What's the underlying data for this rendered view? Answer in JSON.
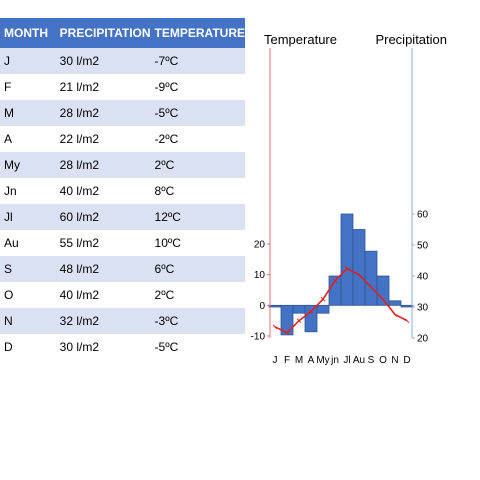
{
  "table": {
    "headers": [
      "MONTH",
      "PRECIPITATION",
      "TEMPERATURE"
    ],
    "rows": [
      {
        "month": "J",
        "precipitation": "30 l/m2",
        "temperature": "-7ºC"
      },
      {
        "month": "F",
        "precipitation": "21 l/m2",
        "temperature": "-9ºC"
      },
      {
        "month": "M",
        "precipitation": "28 l/m2",
        "temperature": "-5ºC"
      },
      {
        "month": "A",
        "precipitation": "22 l/m2",
        "temperature": "-2ºC"
      },
      {
        "month": "My",
        "precipitation": "28 l/m2",
        "temperature": "2ºC"
      },
      {
        "month": "Jn",
        "precipitation": "40 l/m2",
        "temperature": "8ºC"
      },
      {
        "month": "Jl",
        "precipitation": "60 l/m2",
        "temperature": "12ºC"
      },
      {
        "month": "Au",
        "precipitation": "55 l/m2",
        "temperature": "10ºC"
      },
      {
        "month": "S",
        "precipitation": "48 l/m2",
        "temperature": "6ºC"
      },
      {
        "month": "O",
        "precipitation": "40 l/m2",
        "temperature": "2ºC"
      },
      {
        "month": "N",
        "precipitation": "32 l/m2",
        "temperature": "-3ºC"
      },
      {
        "month": "D",
        "precipitation": "30 l/m2",
        "temperature": "-5ºC"
      }
    ]
  },
  "chart_data": {
    "type": "bar",
    "title": "",
    "left_axis_label": "Temperature",
    "right_axis_label": "Precipitation",
    "categories": [
      "J",
      "F",
      "M",
      "A",
      "My",
      "jn",
      "Jl",
      "Au",
      "S",
      "O",
      "N",
      "D"
    ],
    "category_label_sizes": [
      "large",
      "large",
      "large",
      "large",
      "small",
      "small",
      "small",
      "small",
      "small",
      "small",
      "small",
      "small"
    ],
    "series": [
      {
        "values": [
          30,
          21,
          28,
          22,
          28,
          40,
          60,
          55,
          48,
          40,
          32,
          30
        ],
        "axis": "right",
        "kind": "bar",
        "color": "#4472c4"
      },
      {
        "values": [
          -7,
          -9,
          -5,
          -2,
          2,
          8,
          12,
          10,
          6,
          2,
          -3,
          -5
        ],
        "axis": "left",
        "kind": "line",
        "color": "#e0201c"
      }
    ],
    "left_axis": {
      "min": -10,
      "max": 20,
      "ticks": [
        -10,
        0,
        10,
        20
      ]
    },
    "right_axis": {
      "min": 20,
      "max": 60,
      "ticks": [
        20,
        30,
        40,
        50,
        60
      ]
    },
    "bar_base_temperature": 0,
    "left_axis_color": "#e07070",
    "right_axis_color": "#8fb0d8",
    "grid": false,
    "legend": "none"
  }
}
